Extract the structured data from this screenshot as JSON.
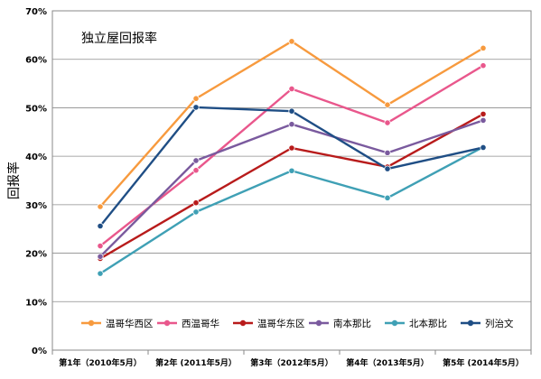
{
  "chart_data": {
    "type": "line",
    "title": "独立屋回报率",
    "xlabel": "",
    "ylabel": "回报率",
    "ylim": [
      0,
      70
    ],
    "y_ticks": [
      "0%",
      "10%",
      "20%",
      "30%",
      "40%",
      "50%",
      "60%",
      "70%"
    ],
    "categories": [
      "第1年（2010年5月）",
      "第2年 (2011年5月）",
      "第3年（2012年5月）",
      "第4年（2013年5月）",
      "第5年 (2014年5月）"
    ],
    "legend_position": "bottom-inside",
    "grid": "horizontal",
    "series": [
      {
        "name": "温哥华西区",
        "color": "#F79A3E",
        "values": [
          29.6,
          51.9,
          63.7,
          50.6,
          62.3
        ]
      },
      {
        "name": "西温哥华",
        "color": "#E9578C",
        "values": [
          21.5,
          37.1,
          53.9,
          46.9,
          58.7
        ]
      },
      {
        "name": "温哥华东区",
        "color": "#B81B1B",
        "values": [
          18.9,
          30.4,
          41.7,
          37.8,
          48.7
        ]
      },
      {
        "name": "南本那比",
        "color": "#7A5A9E",
        "values": [
          19.3,
          39.1,
          46.6,
          40.7,
          47.4
        ]
      },
      {
        "name": "北本那比",
        "color": "#3FA0B5",
        "values": [
          15.8,
          28.5,
          37.0,
          31.4,
          41.9
        ]
      },
      {
        "name": "列治文",
        "color": "#1F4E85",
        "values": [
          25.6,
          50.1,
          49.3,
          37.4,
          41.8
        ]
      }
    ]
  }
}
